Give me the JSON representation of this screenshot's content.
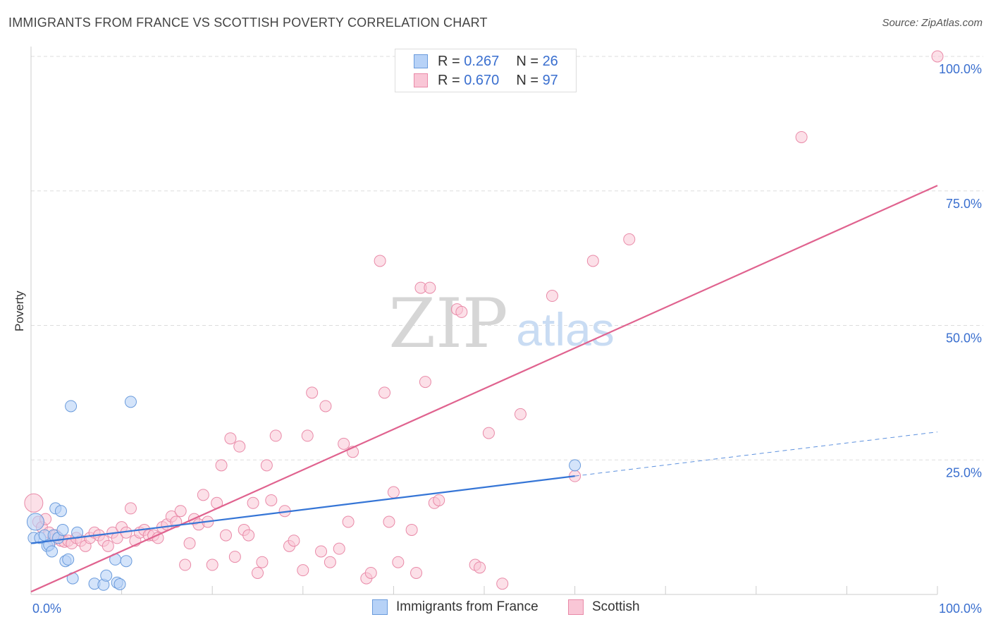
{
  "title": "IMMIGRANTS FROM FRANCE VS SCOTTISH POVERTY CORRELATION CHART",
  "source": "Source: ZipAtlas.com",
  "watermark": {
    "zip": "ZIP",
    "atlas": "atlas"
  },
  "stats": [
    {
      "r_label": "R =",
      "r_value": "0.267",
      "n_label": "N =",
      "n_value": "26"
    },
    {
      "r_label": "R =",
      "r_value": "0.670",
      "n_label": "N =",
      "n_value": "97"
    }
  ],
  "legend": [
    "Immigrants from France",
    "Scottish"
  ],
  "colors": {
    "france_fill": "#b7d2f7",
    "france_stroke": "#6a9bdc",
    "france_line": "#3575d6",
    "scottish_fill": "#f9c6d6",
    "scottish_stroke": "#e98aa8",
    "scottish_line": "#e0638f",
    "axis_text": "#3a6fcf",
    "grid": "#dddddd"
  },
  "chart_data": {
    "type": "scatter",
    "title": "IMMIGRANTS FROM FRANCE VS SCOTTISH POVERTY CORRELATION CHART",
    "xlabel": "",
    "ylabel": "Poverty",
    "xlim": [
      0,
      100
    ],
    "ylim": [
      0,
      100
    ],
    "x_tick_labels": [
      "0.0%",
      "100.0%"
    ],
    "y_ticks": [
      25,
      50,
      75,
      100
    ],
    "y_tick_labels": [
      "25.0%",
      "50.0%",
      "75.0%",
      "100.0%"
    ],
    "series": [
      {
        "name": "Immigrants from France",
        "r": 0.267,
        "n": 26,
        "trend": {
          "x0": 0,
          "y0": 9.5,
          "x1": 60,
          "y1": 22,
          "x_dash_end": 100,
          "y_dash_end": 30.2
        },
        "points": [
          [
            0.3,
            10.5
          ],
          [
            0.5,
            13.5
          ],
          [
            1.0,
            10.5
          ],
          [
            1.5,
            11.0
          ],
          [
            1.8,
            9.0
          ],
          [
            2.0,
            9.2
          ],
          [
            2.3,
            8.0
          ],
          [
            2.5,
            11.0
          ],
          [
            2.7,
            16.0
          ],
          [
            3.0,
            10.5
          ],
          [
            3.3,
            15.5
          ],
          [
            3.5,
            12.0
          ],
          [
            3.8,
            6.2
          ],
          [
            4.1,
            6.5
          ],
          [
            4.4,
            35.0
          ],
          [
            4.6,
            3.0
          ],
          [
            5.1,
            11.5
          ],
          [
            7.0,
            2.0
          ],
          [
            8.0,
            1.8
          ],
          [
            8.3,
            3.5
          ],
          [
            9.5,
            2.2
          ],
          [
            9.8,
            1.9
          ],
          [
            9.3,
            6.5
          ],
          [
            10.5,
            6.2
          ],
          [
            11.0,
            35.8
          ],
          [
            60.0,
            24.0
          ]
        ]
      },
      {
        "name": "Scottish",
        "r": 0.67,
        "n": 97,
        "trend": {
          "x0": 0,
          "y0": 0.5,
          "x1": 100,
          "y1": 76
        },
        "points": [
          [
            0.3,
            17.0
          ],
          [
            0.8,
            13.5
          ],
          [
            1.2,
            12.5
          ],
          [
            1.6,
            14.0
          ],
          [
            2.0,
            11.5
          ],
          [
            2.4,
            10.2
          ],
          [
            2.7,
            11.0
          ],
          [
            3.0,
            10.5
          ],
          [
            3.3,
            10.0
          ],
          [
            3.7,
            9.8
          ],
          [
            4.1,
            10.0
          ],
          [
            4.5,
            9.5
          ],
          [
            5.0,
            10.5
          ],
          [
            5.5,
            10.0
          ],
          [
            6.0,
            9.0
          ],
          [
            6.5,
            10.5
          ],
          [
            7.0,
            11.5
          ],
          [
            7.5,
            11.0
          ],
          [
            8.0,
            10.0
          ],
          [
            8.5,
            9.0
          ],
          [
            9.0,
            11.5
          ],
          [
            9.5,
            10.5
          ],
          [
            10.0,
            12.5
          ],
          [
            10.5,
            11.5
          ],
          [
            11.0,
            16.0
          ],
          [
            11.5,
            10.0
          ],
          [
            12.0,
            11.5
          ],
          [
            12.5,
            12.0
          ],
          [
            13.0,
            11.0
          ],
          [
            13.5,
            11.0
          ],
          [
            14.0,
            10.5
          ],
          [
            14.5,
            12.5
          ],
          [
            15.0,
            13.0
          ],
          [
            15.5,
            14.5
          ],
          [
            16.0,
            13.5
          ],
          [
            16.5,
            15.5
          ],
          [
            17.0,
            5.5
          ],
          [
            17.5,
            9.5
          ],
          [
            18.0,
            14.0
          ],
          [
            18.5,
            13.0
          ],
          [
            19.0,
            18.5
          ],
          [
            19.5,
            13.5
          ],
          [
            20.0,
            5.5
          ],
          [
            20.5,
            17.0
          ],
          [
            21.0,
            24.0
          ],
          [
            21.5,
            11.0
          ],
          [
            22.0,
            29.0
          ],
          [
            22.5,
            7.0
          ],
          [
            23.0,
            27.5
          ],
          [
            23.5,
            12.0
          ],
          [
            24.0,
            11.0
          ],
          [
            24.5,
            17.0
          ],
          [
            25.0,
            4.0
          ],
          [
            25.5,
            6.0
          ],
          [
            26.0,
            24.0
          ],
          [
            26.5,
            17.5
          ],
          [
            27.0,
            29.5
          ],
          [
            28.0,
            15.5
          ],
          [
            28.5,
            9.0
          ],
          [
            29.0,
            10.0
          ],
          [
            30.0,
            4.5
          ],
          [
            30.5,
            29.5
          ],
          [
            31.0,
            37.5
          ],
          [
            32.0,
            8.0
          ],
          [
            32.5,
            35.0
          ],
          [
            33.0,
            6.0
          ],
          [
            34.0,
            8.5
          ],
          [
            34.5,
            28.0
          ],
          [
            35.0,
            13.5
          ],
          [
            35.5,
            26.5
          ],
          [
            37.0,
            3.0
          ],
          [
            37.5,
            4.0
          ],
          [
            38.5,
            62.0
          ],
          [
            39.0,
            37.5
          ],
          [
            39.5,
            13.5
          ],
          [
            40.0,
            19.0
          ],
          [
            40.5,
            6.0
          ],
          [
            42.0,
            12.0
          ],
          [
            42.5,
            4.0
          ],
          [
            43.0,
            57.0
          ],
          [
            43.5,
            39.5
          ],
          [
            44.0,
            57.0
          ],
          [
            44.5,
            17.0
          ],
          [
            45.0,
            17.5
          ],
          [
            47.0,
            53.0
          ],
          [
            47.5,
            52.5
          ],
          [
            49.0,
            5.5
          ],
          [
            49.5,
            5.0
          ],
          [
            50.5,
            30.0
          ],
          [
            52.0,
            2.0
          ],
          [
            54.0,
            33.5
          ],
          [
            57.5,
            55.5
          ],
          [
            60.0,
            22.0
          ],
          [
            62.0,
            62.0
          ],
          [
            66.0,
            66.0
          ],
          [
            85.0,
            85.0
          ],
          [
            100.0,
            100.0
          ]
        ]
      }
    ]
  }
}
